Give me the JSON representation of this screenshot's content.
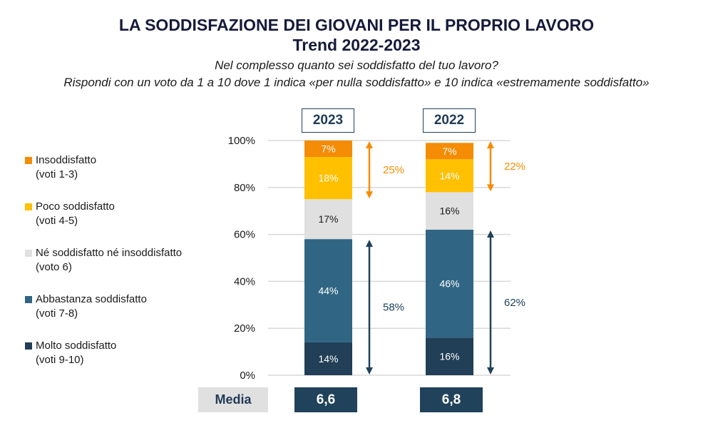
{
  "header": {
    "title": "LA SODDISFAZIONE DEI GIOVANI PER IL PROPRIO LAVORO",
    "subtitle_bold": "Trend 2022-2023",
    "question": "Nel complesso quanto sei soddisfatto del tuo lavoro?",
    "instruction": "Rispondi con un voto da 1 a 10 dove 1 indica «per nulla soddisfatto» e 10 indica «estremamente soddisfatto»"
  },
  "legend": [
    {
      "label": "Insoddisfatto",
      "sub": "(voti 1-3)",
      "color": "#f48c06"
    },
    {
      "label": "Poco soddisfatto",
      "sub": "(voti 4-5)",
      "color": "#ffc000"
    },
    {
      "label": "Né soddisfatto né insoddisfatto",
      "sub": "(voto 6)",
      "color": "#e0e0e0"
    },
    {
      "label": "Abbastanza soddisfatto",
      "sub": "(voti 7-8)",
      "color": "#306684"
    },
    {
      "label": "Molto soddisfatto",
      "sub": "(voti 9-10)",
      "color": "#213f56"
    }
  ],
  "media": {
    "label": "Media",
    "values": [
      "6,6",
      "6,8"
    ]
  },
  "chart_data": {
    "type": "bar",
    "stacked": true,
    "title": "LA SODDISFAZIONE DEI GIOVANI PER IL PROPRIO LAVORO - Trend 2022-2023",
    "categories": [
      "2023",
      "2022"
    ],
    "series": [
      {
        "name": "Molto soddisfatto (voti 9-10)",
        "color": "#213f56",
        "label_color": "#ffffff",
        "values": [
          14,
          16
        ]
      },
      {
        "name": "Abbastanza soddisfatto (voti 7-8)",
        "color": "#306684",
        "label_color": "#ffffff",
        "values": [
          44,
          46
        ]
      },
      {
        "name": "Né soddisfatto né insoddisfatto (voto 6)",
        "color": "#e0e0e0",
        "label_color": "#1a1a1a",
        "values": [
          17,
          16
        ]
      },
      {
        "name": "Poco soddisfatto (voti 4-5)",
        "color": "#ffc000",
        "label_color": "#ffffff",
        "values": [
          18,
          14
        ]
      },
      {
        "name": "Insoddisfatto (voti 1-3)",
        "color": "#f48c06",
        "label_color": "#ffffff",
        "values": [
          7,
          7
        ]
      }
    ],
    "annotations": [
      {
        "category": "2023",
        "label": "25%",
        "from": 75,
        "to": 100,
        "color": "#f48c06"
      },
      {
        "category": "2023",
        "label": "58%",
        "from": 0,
        "to": 58,
        "color": "#20425a"
      },
      {
        "category": "2022",
        "label": "22%",
        "from": 78,
        "to": 100,
        "color": "#f48c06"
      },
      {
        "category": "2022",
        "label": "62%",
        "from": 0,
        "to": 62,
        "color": "#20425a"
      }
    ],
    "yticks": [
      "0%",
      "20%",
      "40%",
      "60%",
      "80%",
      "100%"
    ],
    "ylim": [
      0,
      100
    ],
    "xlabel": "",
    "ylabel": "",
    "grid": true,
    "legend_position": "left"
  }
}
